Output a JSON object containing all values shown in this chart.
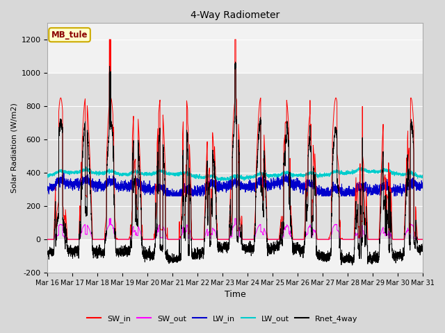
{
  "title": "4-Way Radiometer",
  "xlabel": "Time",
  "ylabel": "Solar Radiation (W/m2)",
  "ylim": [
    -200,
    1300
  ],
  "yticks": [
    -200,
    0,
    200,
    400,
    600,
    800,
    1000,
    1200
  ],
  "xlim": [
    0,
    15
  ],
  "xtick_labels": [
    "Mar 16",
    "Mar 17",
    "Mar 18",
    "Mar 19",
    "Mar 20",
    "Mar 21",
    "Mar 22",
    "Mar 23",
    "Mar 24",
    "Mar 25",
    "Mar 26",
    "Mar 27",
    "Mar 28",
    "Mar 29",
    "Mar 30",
    "Mar 31"
  ],
  "legend_entries": [
    "SW_in",
    "SW_out",
    "LW_in",
    "LW_out",
    "Rnet_4way"
  ],
  "legend_colors": [
    "#ff0000",
    "#ff00ff",
    "#0000cc",
    "#00cccc",
    "#000000"
  ],
  "station_label": "MB_tule",
  "background_color": "#d8d8d8",
  "plot_bg_color": "#f2f2f2",
  "shaded_bg_color": "#e0e0e0",
  "grid_color": "#ffffff"
}
